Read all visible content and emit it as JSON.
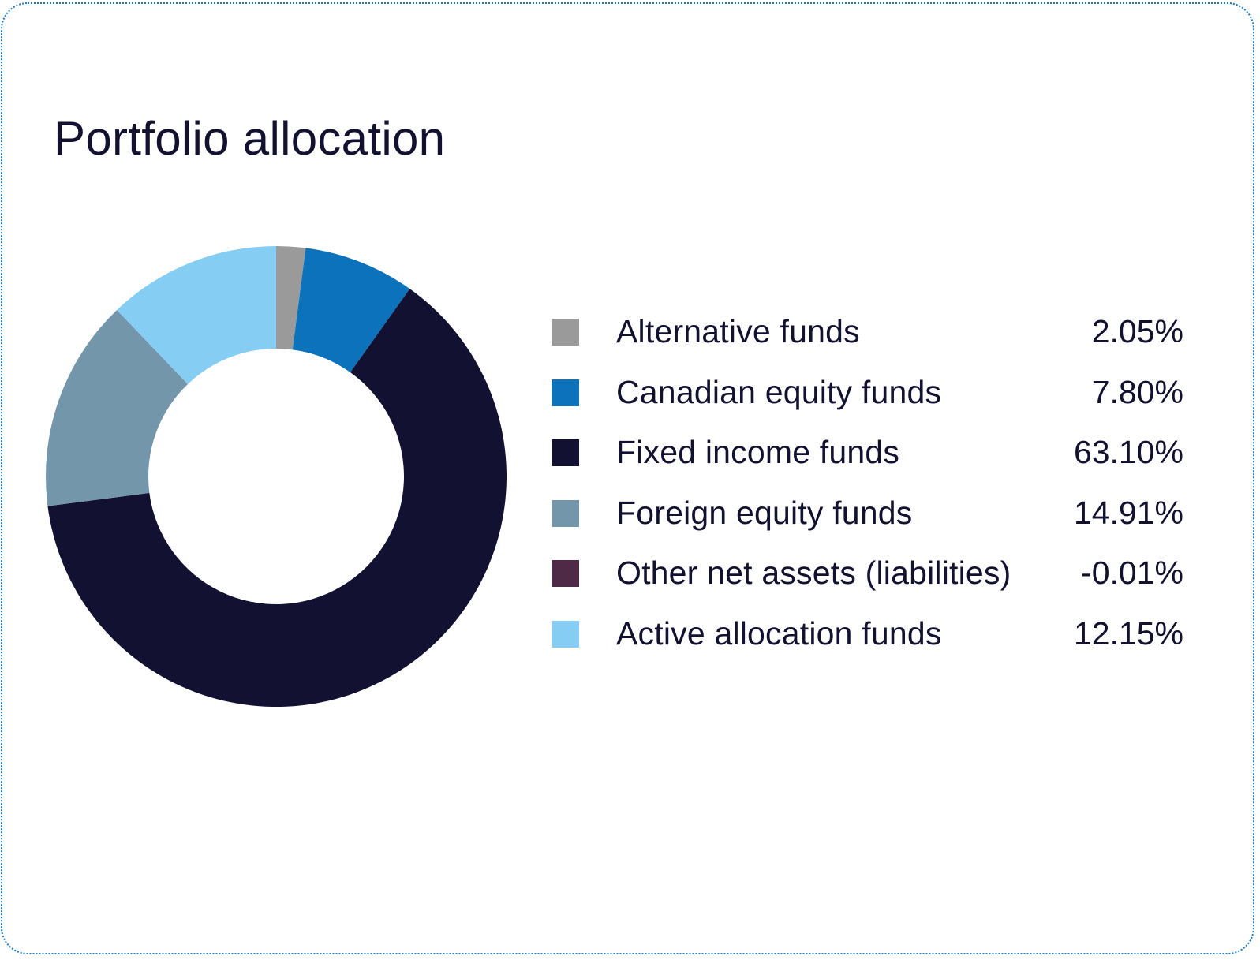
{
  "chart_data": {
    "type": "pie",
    "title": "Portfolio allocation",
    "donut": true,
    "legend_position": "right",
    "categories": [
      "Alternative funds",
      "Canadian equity funds",
      "Fixed income funds",
      "Foreign equity funds",
      "Other net assets (liabilities)",
      "Active allocation funds"
    ],
    "values": [
      2.05,
      7.8,
      63.1,
      14.91,
      -0.01,
      12.15
    ],
    "value_labels": [
      "2.05%",
      "7.80%",
      "63.10%",
      "14.91%",
      "-0.01%",
      "12.15%"
    ],
    "colors": [
      "#9a9a9a",
      "#0d72bc",
      "#131131",
      "#7496ab",
      "#4f2a46",
      "#86cdf3"
    ]
  }
}
